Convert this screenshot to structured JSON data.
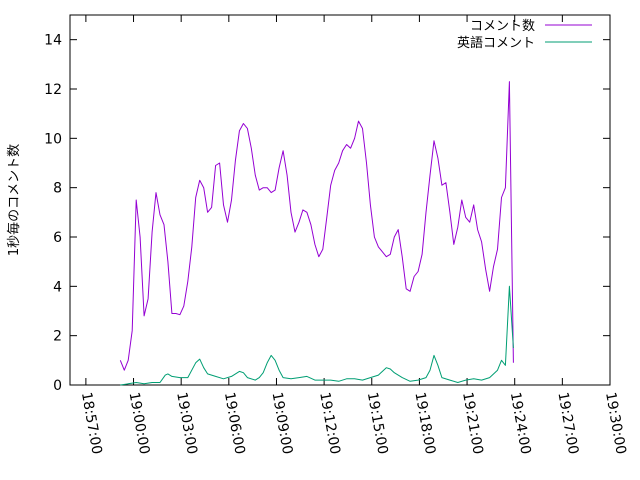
{
  "chart_data": {
    "type": "line",
    "title": "",
    "xlabel": "",
    "ylabel": "1秒毎のコメント数",
    "xlim": [
      "18:56:00",
      "19:30:00"
    ],
    "ylim": [
      0,
      15
    ],
    "y_ticks": [
      0,
      2,
      4,
      6,
      8,
      10,
      12,
      14
    ],
    "x_ticks": [
      "18:57:00",
      "19:00:00",
      "19:03:00",
      "19:06:00",
      "19:09:00",
      "19:12:00",
      "19:15:00",
      "19:18:00",
      "19:21:00",
      "19:24:00",
      "19:27:00",
      "19:30:00"
    ],
    "legend_position": "top-right",
    "grid": false,
    "series": [
      {
        "name": "コメント数",
        "color": "#9400d3",
        "points": [
          [
            "18:59:10",
            1.0
          ],
          [
            "18:59:25",
            0.6
          ],
          [
            "18:59:40",
            1.0
          ],
          [
            "18:59:55",
            2.2
          ],
          [
            "19:00:10",
            7.5
          ],
          [
            "19:00:25",
            6.0
          ],
          [
            "19:00:40",
            2.8
          ],
          [
            "19:00:55",
            3.5
          ],
          [
            "19:01:10",
            6.2
          ],
          [
            "19:01:25",
            7.8
          ],
          [
            "19:01:40",
            6.9
          ],
          [
            "19:01:55",
            6.5
          ],
          [
            "19:02:10",
            5.0
          ],
          [
            "19:02:25",
            2.9
          ],
          [
            "19:02:40",
            2.9
          ],
          [
            "19:02:55",
            2.85
          ],
          [
            "19:03:10",
            3.2
          ],
          [
            "19:03:25",
            4.2
          ],
          [
            "19:03:40",
            5.6
          ],
          [
            "19:03:55",
            7.6
          ],
          [
            "19:04:10",
            8.3
          ],
          [
            "19:04:25",
            8.0
          ],
          [
            "19:04:40",
            7.0
          ],
          [
            "19:04:55",
            7.2
          ],
          [
            "19:05:10",
            8.9
          ],
          [
            "19:05:25",
            9.0
          ],
          [
            "19:05:40",
            7.3
          ],
          [
            "19:05:55",
            6.6
          ],
          [
            "19:06:10",
            7.5
          ],
          [
            "19:06:25",
            9.1
          ],
          [
            "19:06:40",
            10.3
          ],
          [
            "19:06:55",
            10.6
          ],
          [
            "19:07:10",
            10.4
          ],
          [
            "19:07:25",
            9.6
          ],
          [
            "19:07:40",
            8.5
          ],
          [
            "19:07:55",
            7.9
          ],
          [
            "19:08:10",
            8.0
          ],
          [
            "19:08:25",
            8.0
          ],
          [
            "19:08:40",
            7.8
          ],
          [
            "19:08:55",
            7.9
          ],
          [
            "19:09:10",
            8.8
          ],
          [
            "19:09:25",
            9.5
          ],
          [
            "19:09:40",
            8.5
          ],
          [
            "19:09:55",
            7.0
          ],
          [
            "19:10:10",
            6.2
          ],
          [
            "19:10:25",
            6.6
          ],
          [
            "19:10:40",
            7.1
          ],
          [
            "19:10:55",
            7.0
          ],
          [
            "19:11:10",
            6.5
          ],
          [
            "19:11:25",
            5.7
          ],
          [
            "19:11:40",
            5.2
          ],
          [
            "19:11:55",
            5.5
          ],
          [
            "19:12:10",
            6.8
          ],
          [
            "19:12:25",
            8.1
          ],
          [
            "19:12:40",
            8.7
          ],
          [
            "19:12:55",
            9.0
          ],
          [
            "19:13:10",
            9.5
          ],
          [
            "19:13:25",
            9.75
          ],
          [
            "19:13:40",
            9.6
          ],
          [
            "19:13:55",
            10.0
          ],
          [
            "19:14:10",
            10.7
          ],
          [
            "19:14:25",
            10.4
          ],
          [
            "19:14:40",
            9.0
          ],
          [
            "19:14:55",
            7.3
          ],
          [
            "19:15:10",
            6.0
          ],
          [
            "19:15:25",
            5.6
          ],
          [
            "19:15:40",
            5.4
          ],
          [
            "19:15:55",
            5.2
          ],
          [
            "19:16:10",
            5.3
          ],
          [
            "19:16:25",
            6.0
          ],
          [
            "19:16:40",
            6.3
          ],
          [
            "19:16:55",
            5.2
          ],
          [
            "19:17:10",
            3.9
          ],
          [
            "19:17:25",
            3.8
          ],
          [
            "19:17:40",
            4.4
          ],
          [
            "19:17:55",
            4.6
          ],
          [
            "19:18:10",
            5.3
          ],
          [
            "19:18:25",
            7.0
          ],
          [
            "19:18:40",
            8.5
          ],
          [
            "19:18:55",
            9.9
          ],
          [
            "19:19:10",
            9.2
          ],
          [
            "19:19:25",
            8.1
          ],
          [
            "19:19:40",
            8.2
          ],
          [
            "19:19:55",
            7.0
          ],
          [
            "19:20:10",
            5.7
          ],
          [
            "19:20:25",
            6.4
          ],
          [
            "19:20:40",
            7.5
          ],
          [
            "19:20:55",
            6.8
          ],
          [
            "19:21:10",
            6.6
          ],
          [
            "19:21:25",
            7.3
          ],
          [
            "19:21:40",
            6.3
          ],
          [
            "19:21:55",
            5.8
          ],
          [
            "19:22:10",
            4.7
          ],
          [
            "19:22:25",
            3.8
          ],
          [
            "19:22:40",
            4.8
          ],
          [
            "19:22:55",
            5.5
          ],
          [
            "19:23:10",
            7.6
          ],
          [
            "19:23:25",
            8.0
          ],
          [
            "19:23:40",
            12.3
          ],
          [
            "19:23:55",
            0.9
          ]
        ]
      },
      {
        "name": "英語コメント",
        "color": "#009e73",
        "points": [
          [
            "18:59:10",
            0.0
          ],
          [
            "18:59:40",
            0.05
          ],
          [
            "19:00:10",
            0.1
          ],
          [
            "19:00:40",
            0.05
          ],
          [
            "19:01:10",
            0.1
          ],
          [
            "19:01:40",
            0.1
          ],
          [
            "19:02:00",
            0.4
          ],
          [
            "19:02:10",
            0.45
          ],
          [
            "19:02:25",
            0.35
          ],
          [
            "19:02:55",
            0.3
          ],
          [
            "19:03:25",
            0.3
          ],
          [
            "19:03:55",
            0.9
          ],
          [
            "19:04:10",
            1.05
          ],
          [
            "19:04:25",
            0.7
          ],
          [
            "19:04:40",
            0.45
          ],
          [
            "19:05:10",
            0.35
          ],
          [
            "19:05:40",
            0.25
          ],
          [
            "19:06:10",
            0.35
          ],
          [
            "19:06:40",
            0.55
          ],
          [
            "19:06:55",
            0.5
          ],
          [
            "19:07:10",
            0.3
          ],
          [
            "19:07:40",
            0.2
          ],
          [
            "19:07:55",
            0.3
          ],
          [
            "19:08:10",
            0.5
          ],
          [
            "19:08:25",
            0.9
          ],
          [
            "19:08:40",
            1.2
          ],
          [
            "19:08:55",
            1.0
          ],
          [
            "19:09:10",
            0.6
          ],
          [
            "19:09:25",
            0.3
          ],
          [
            "19:09:55",
            0.25
          ],
          [
            "19:10:25",
            0.3
          ],
          [
            "19:10:55",
            0.35
          ],
          [
            "19:11:25",
            0.2
          ],
          [
            "19:11:55",
            0.2
          ],
          [
            "19:12:25",
            0.2
          ],
          [
            "19:12:55",
            0.15
          ],
          [
            "19:13:25",
            0.25
          ],
          [
            "19:13:55",
            0.25
          ],
          [
            "19:14:25",
            0.2
          ],
          [
            "19:14:55",
            0.3
          ],
          [
            "19:15:25",
            0.4
          ],
          [
            "19:15:55",
            0.7
          ],
          [
            "19:16:10",
            0.65
          ],
          [
            "19:16:25",
            0.5
          ],
          [
            "19:16:55",
            0.3
          ],
          [
            "19:17:25",
            0.15
          ],
          [
            "19:17:55",
            0.2
          ],
          [
            "19:18:25",
            0.3
          ],
          [
            "19:18:40",
            0.6
          ],
          [
            "19:18:55",
            1.2
          ],
          [
            "19:19:10",
            0.8
          ],
          [
            "19:19:25",
            0.3
          ],
          [
            "19:19:55",
            0.2
          ],
          [
            "19:20:25",
            0.1
          ],
          [
            "19:20:55",
            0.2
          ],
          [
            "19:21:25",
            0.25
          ],
          [
            "19:21:55",
            0.2
          ],
          [
            "19:22:25",
            0.3
          ],
          [
            "19:22:55",
            0.6
          ],
          [
            "19:23:10",
            1.0
          ],
          [
            "19:23:25",
            0.8
          ],
          [
            "19:23:40",
            4.0
          ],
          [
            "19:23:55",
            1.5
          ]
        ]
      }
    ]
  }
}
